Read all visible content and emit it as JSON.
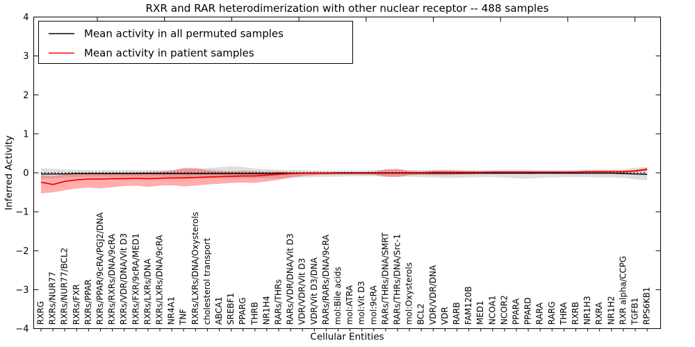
{
  "figure": {
    "title": "RXR and RAR heterodimerization with other nuclear receptor -- 488 samples"
  },
  "chart_data": {
    "type": "line",
    "title": "RXR and RAR heterodimerization with other nuclear receptor -- 488 samples",
    "xlabel": "Cellular Entities",
    "ylabel": "Inferred Activity",
    "ylim": [
      -4,
      4
    ],
    "yticks": [
      -4,
      -3,
      -2,
      -1,
      0,
      1,
      2,
      3,
      4
    ],
    "ytick_labels": [
      "−4",
      "−3",
      "−2",
      "−1",
      "0",
      "1",
      "2",
      "3",
      "4"
    ],
    "grid": false,
    "zero_line": {
      "y": 0,
      "style": "dotted",
      "color": "#000000"
    },
    "legend": {
      "position": "upper left",
      "entries": [
        {
          "label": "Mean activity in all permuted samples",
          "color": "#000000"
        },
        {
          "label": "Mean activity in patient samples",
          "color": "#ff0000"
        }
      ]
    },
    "categories": [
      "RXRG",
      "RXRs/NUR77",
      "RXRs/NUR77/BCL2",
      "RXRs/FXR",
      "RXRs/PPAR",
      "RXRs/PPAR/9cRA/PGJ2/DNA",
      "RXRs/RXRs/DNA/9cRA",
      "RXRs/VDR/DNA/Vit D3",
      "RXRs/FXR/9cRA/MED1",
      "RXRs/LXRs/DNA",
      "RXRs/LXRs/DNA/9cRA",
      "NR4A1",
      "TNF",
      "RXRs/LXRs/DNA/Oxysterols",
      "cholesterol transport",
      "ABCA1",
      "SREBF1",
      "PPARG",
      "THRB",
      "NR1H4",
      "RARs/THRs",
      "RARs/VDR/DNA/Vit D3",
      "VDR/VDR/Vit D3",
      "VDR/Vit D3/DNA",
      "RARs/RARs/DNA/9cRA",
      "mol:Bile acids",
      "mol:ATRA",
      "mol:Vit D3",
      "mol:9cRA",
      "RARs/THRs/DNA/SMRT",
      "RARs/THRs/DNA/Src-1",
      "mol:Oxysterols",
      "BCL2",
      "VDR/VDR/DNA",
      "VDR",
      "RARB",
      "FAM120B",
      "MED1",
      "NCOA1",
      "NCOR2",
      "PPARA",
      "PPARD",
      "RARA",
      "RARG",
      "THRA",
      "RXRB",
      "NR1H3",
      "RXRA",
      "NR1H2",
      "RXR alpha/CCPG",
      "TGFB1",
      "RPS6KB1"
    ],
    "series": [
      {
        "name": "Mean activity in all permuted samples",
        "color": "#000000",
        "line_width": 1.4,
        "band_opacity": 0.13,
        "values": [
          -0.03,
          -0.03,
          -0.03,
          -0.02,
          -0.02,
          -0.02,
          -0.02,
          -0.02,
          -0.02,
          -0.02,
          -0.02,
          -0.02,
          -0.02,
          -0.02,
          -0.02,
          -0.02,
          -0.02,
          -0.02,
          -0.02,
          -0.02,
          -0.01,
          -0.01,
          -0.01,
          -0.01,
          -0.01,
          -0.01,
          -0.01,
          -0.01,
          -0.01,
          -0.01,
          -0.01,
          -0.01,
          -0.01,
          -0.01,
          -0.01,
          -0.01,
          -0.01,
          -0.01,
          -0.01,
          -0.01,
          -0.01,
          -0.01,
          -0.01,
          -0.01,
          -0.01,
          -0.01,
          -0.01,
          -0.01,
          -0.01,
          -0.02,
          -0.03,
          -0.04
        ],
        "band_upper": [
          0.12,
          0.1,
          0.09,
          0.08,
          0.07,
          0.07,
          0.07,
          0.07,
          0.07,
          0.07,
          0.07,
          0.08,
          0.09,
          0.1,
          0.12,
          0.14,
          0.17,
          0.15,
          0.11,
          0.09,
          0.08,
          0.07,
          0.07,
          0.06,
          0.06,
          0.06,
          0.06,
          0.06,
          0.07,
          0.08,
          0.08,
          0.07,
          0.07,
          0.08,
          0.08,
          0.08,
          0.07,
          0.07,
          0.07,
          0.08,
          0.08,
          0.08,
          0.07,
          0.07,
          0.07,
          0.07,
          0.08,
          0.08,
          0.08,
          0.09,
          0.13,
          0.15
        ],
        "band_lower": [
          -0.16,
          -0.14,
          -0.12,
          -0.11,
          -0.1,
          -0.1,
          -0.1,
          -0.1,
          -0.1,
          -0.1,
          -0.1,
          -0.1,
          -0.11,
          -0.12,
          -0.12,
          -0.12,
          -0.12,
          -0.13,
          -0.13,
          -0.14,
          -0.14,
          -0.13,
          -0.12,
          -0.11,
          -0.1,
          -0.1,
          -0.09,
          -0.09,
          -0.09,
          -0.1,
          -0.1,
          -0.1,
          -0.11,
          -0.12,
          -0.13,
          -0.13,
          -0.12,
          -0.11,
          -0.11,
          -0.12,
          -0.14,
          -0.15,
          -0.13,
          -0.12,
          -0.11,
          -0.11,
          -0.11,
          -0.12,
          -0.12,
          -0.13,
          -0.17,
          -0.19
        ]
      },
      {
        "name": "Mean activity in patient samples",
        "color": "#ff0000",
        "line_width": 1.8,
        "band_opacity": 0.32,
        "values": [
          -0.24,
          -0.3,
          -0.22,
          -0.18,
          -0.16,
          -0.16,
          -0.15,
          -0.15,
          -0.14,
          -0.15,
          -0.14,
          -0.13,
          -0.13,
          -0.12,
          -0.11,
          -0.1,
          -0.09,
          -0.08,
          -0.08,
          -0.06,
          -0.04,
          -0.02,
          -0.01,
          -0.01,
          -0.01,
          0.0,
          0.0,
          0.0,
          0.0,
          0.0,
          0.0,
          0.0,
          0.0,
          0.01,
          0.01,
          0.01,
          0.01,
          0.01,
          0.02,
          0.02,
          0.02,
          0.02,
          0.02,
          0.02,
          0.02,
          0.02,
          0.03,
          0.03,
          0.03,
          0.03,
          0.05,
          0.09
        ],
        "band_upper": [
          -0.06,
          -0.08,
          -0.05,
          -0.03,
          -0.02,
          -0.01,
          0.0,
          0.0,
          0.01,
          0.02,
          0.03,
          0.05,
          0.13,
          0.12,
          0.07,
          0.05,
          0.04,
          0.05,
          0.04,
          0.03,
          0.03,
          0.02,
          0.02,
          0.02,
          0.02,
          0.02,
          0.02,
          0.02,
          0.03,
          0.09,
          0.1,
          0.05,
          0.04,
          0.05,
          0.06,
          0.05,
          0.04,
          0.04,
          0.04,
          0.04,
          0.04,
          0.04,
          0.03,
          0.03,
          0.03,
          0.03,
          0.04,
          0.04,
          0.04,
          0.05,
          0.07,
          0.12
        ],
        "band_lower": [
          -0.53,
          -0.5,
          -0.45,
          -0.4,
          -0.38,
          -0.4,
          -0.37,
          -0.34,
          -0.33,
          -0.36,
          -0.33,
          -0.32,
          -0.35,
          -0.33,
          -0.3,
          -0.28,
          -0.26,
          -0.25,
          -0.26,
          -0.22,
          -0.18,
          -0.12,
          -0.08,
          -0.06,
          -0.05,
          -0.04,
          -0.04,
          -0.04,
          -0.05,
          -0.1,
          -0.11,
          -0.06,
          -0.05,
          -0.06,
          -0.06,
          -0.05,
          -0.04,
          -0.03,
          -0.03,
          -0.03,
          -0.03,
          -0.03,
          -0.02,
          -0.02,
          -0.02,
          -0.02,
          -0.01,
          -0.01,
          -0.01,
          0.0,
          0.02,
          0.05
        ]
      }
    ]
  }
}
